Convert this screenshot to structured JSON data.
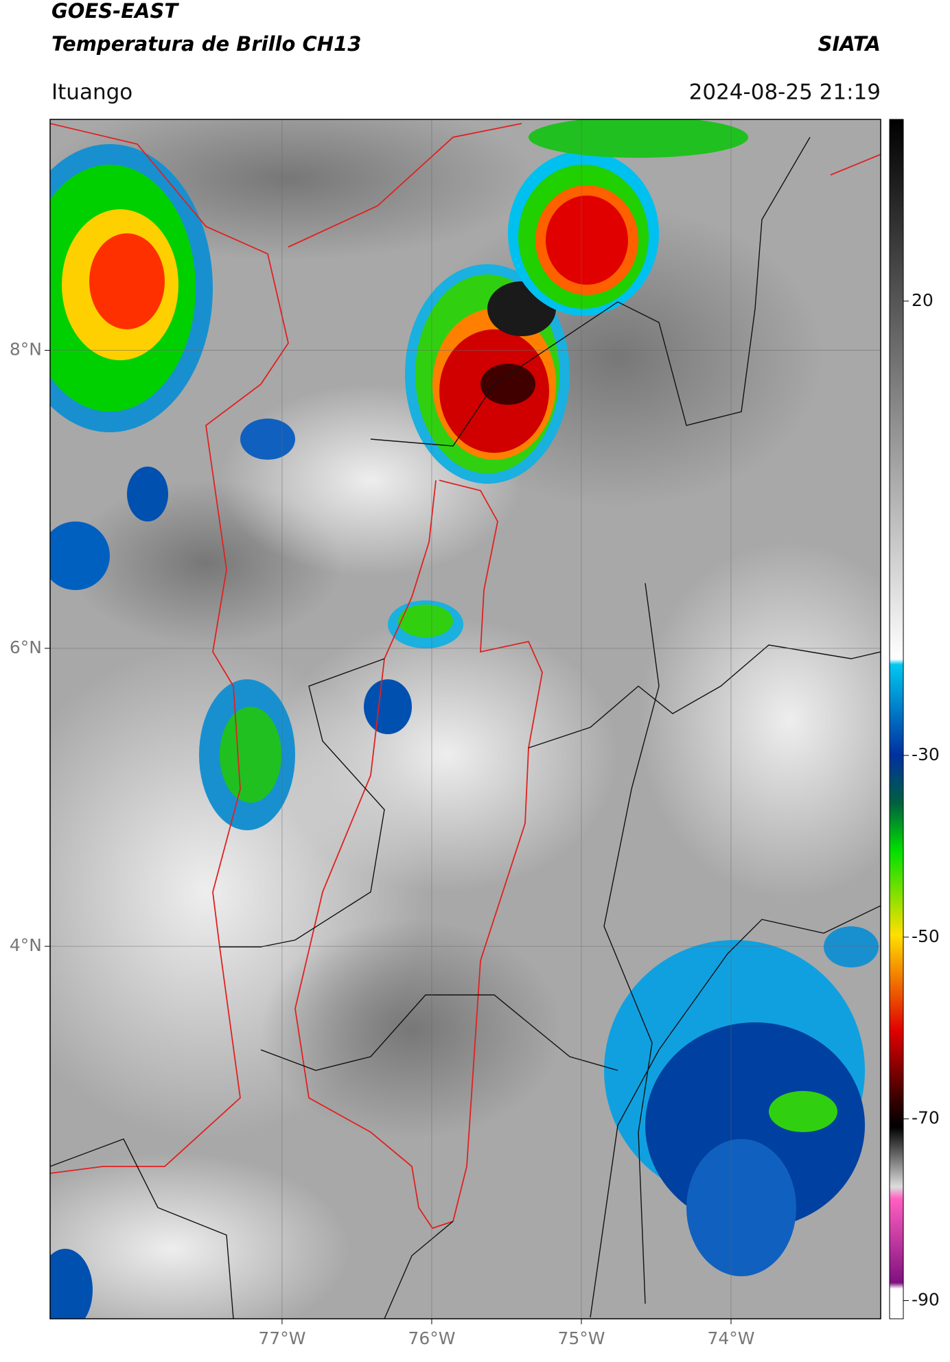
{
  "header": {
    "title": "GOES-EAST",
    "subtitle": "Temperatura de Brillo CH13",
    "source": "SIATA",
    "location": "Ituango",
    "timestamp": "2024-08-25 21:19"
  },
  "map": {
    "xlim": [
      -78.55,
      -73.0
    ],
    "ylim": [
      1.5,
      9.55
    ],
    "xticks": [
      {
        "value": -77,
        "label": "77°W"
      },
      {
        "value": -76,
        "label": "76°W"
      },
      {
        "value": -75,
        "label": "75°W"
      },
      {
        "value": -74,
        "label": "74°W"
      }
    ],
    "yticks": [
      {
        "value": 8,
        "label": "8°N"
      },
      {
        "value": 6,
        "label": "6°N"
      },
      {
        "value": 4,
        "label": "4°N"
      }
    ]
  },
  "colorbar": {
    "lim": [
      -92,
      40
    ],
    "ticks": [
      20,
      -30,
      -50,
      -70,
      -90
    ]
  }
}
